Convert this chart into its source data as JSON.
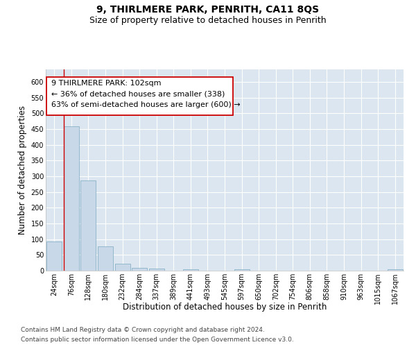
{
  "title": "9, THIRLMERE PARK, PENRITH, CA11 8QS",
  "subtitle": "Size of property relative to detached houses in Penrith",
  "xlabel": "Distribution of detached houses by size in Penrith",
  "ylabel": "Number of detached properties",
  "bar_color": "#c8d8e8",
  "bar_edge_color": "#7aaabf",
  "bg_color": "#dce6f0",
  "annotation_box_color": "#cc0000",
  "property_line_color": "#cc0000",
  "categories": [
    "24sqm",
    "76sqm",
    "128sqm",
    "180sqm",
    "232sqm",
    "284sqm",
    "337sqm",
    "389sqm",
    "441sqm",
    "493sqm",
    "545sqm",
    "597sqm",
    "650sqm",
    "702sqm",
    "754sqm",
    "806sqm",
    "858sqm",
    "910sqm",
    "963sqm",
    "1015sqm",
    "1067sqm"
  ],
  "values": [
    93,
    459,
    288,
    77,
    22,
    8,
    7,
    0,
    5,
    0,
    0,
    5,
    0,
    0,
    0,
    0,
    0,
    0,
    0,
    0,
    5
  ],
  "ylim": [
    0,
    640
  ],
  "yticks": [
    0,
    50,
    100,
    150,
    200,
    250,
    300,
    350,
    400,
    450,
    500,
    550,
    600
  ],
  "property_bin_index": 1,
  "annotation_text_line1": "9 THIRLMERE PARK: 102sqm",
  "annotation_text_line2": "← 36% of detached houses are smaller (338)",
  "annotation_text_line3": "63% of semi-detached houses are larger (600) →",
  "footer_line1": "Contains HM Land Registry data © Crown copyright and database right 2024.",
  "footer_line2": "Contains public sector information licensed under the Open Government Licence v3.0.",
  "title_fontsize": 10,
  "subtitle_fontsize": 9,
  "axis_label_fontsize": 8.5,
  "tick_fontsize": 7,
  "annotation_fontsize": 8,
  "footer_fontsize": 6.5
}
